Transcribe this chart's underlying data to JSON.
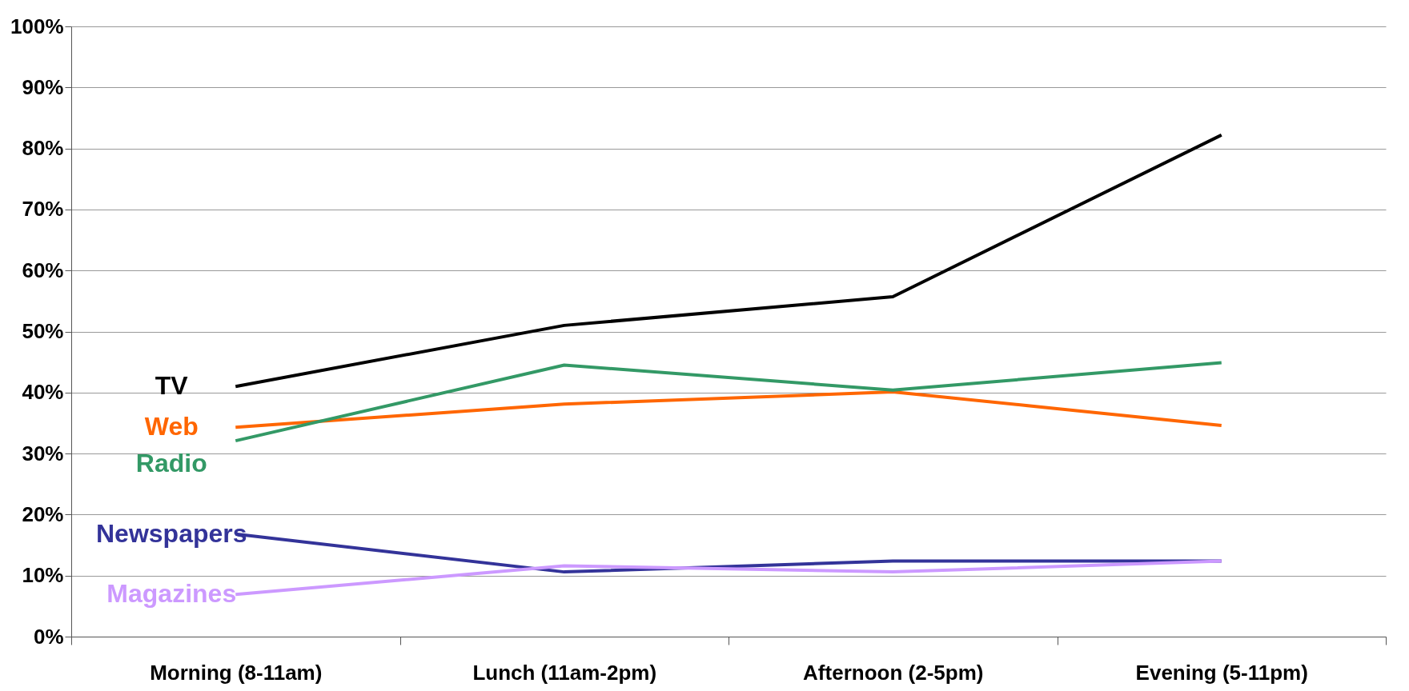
{
  "chart_data": {
    "type": "line",
    "categories": [
      "Morning (8-11am)",
      "Lunch (11am-2pm)",
      "Afternoon (2-5pm)",
      "Evening (5-11pm)"
    ],
    "series": [
      {
        "name": "TV",
        "color": "#000000",
        "values": [
          41,
          51,
          55.7,
          82.2
        ]
      },
      {
        "name": "Web",
        "color": "#ff6600",
        "values": [
          34.3,
          38.1,
          40.1,
          34.6
        ]
      },
      {
        "name": "Radio",
        "color": "#339966",
        "values": [
          32.1,
          44.5,
          40.4,
          44.9
        ]
      },
      {
        "name": "Newspapers",
        "color": "#333399",
        "values": [
          16.8,
          10.6,
          12.4,
          12.4
        ]
      },
      {
        "name": "Magazines",
        "color": "#cc99ff",
        "values": [
          6.9,
          11.6,
          10.6,
          12.4
        ]
      }
    ],
    "ylim": [
      0,
      100
    ],
    "yticks": [
      {
        "value": 0,
        "label": "0%"
      },
      {
        "value": 10,
        "label": "10%"
      },
      {
        "value": 20,
        "label": "20%"
      },
      {
        "value": 30,
        "label": "30%"
      },
      {
        "value": 40,
        "label": "40%"
      },
      {
        "value": 50,
        "label": "50%"
      },
      {
        "value": 60,
        "label": "60%"
      },
      {
        "value": 70,
        "label": "70%"
      },
      {
        "value": 80,
        "label": "80%"
      },
      {
        "value": 90,
        "label": "90%"
      },
      {
        "value": 100,
        "label": "100%"
      }
    ],
    "grid": "y",
    "legend": false,
    "marker": "none",
    "line_style": "solid"
  }
}
